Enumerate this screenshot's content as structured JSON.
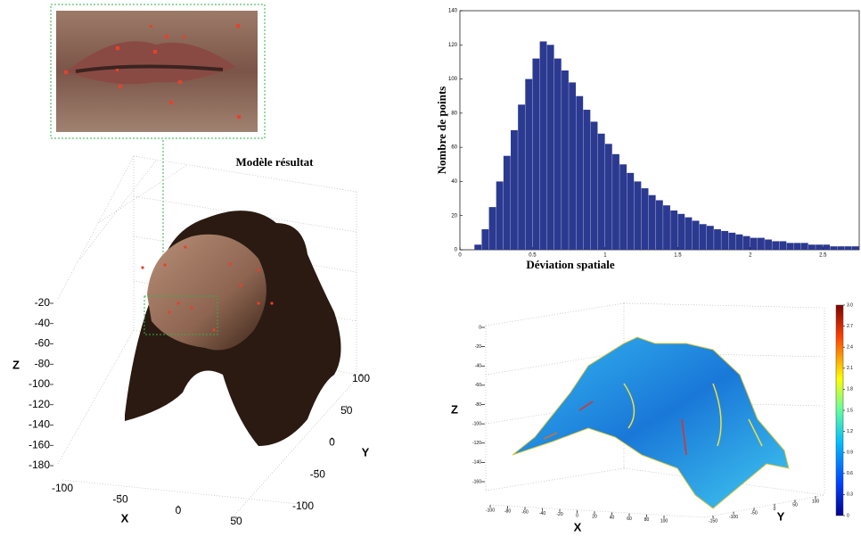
{
  "chart_data": [
    {
      "type": "surface3d",
      "title": "Modèle résultat",
      "xlabel": "X",
      "ylabel": "Y",
      "zlabel": "Z",
      "xlim": [
        -100,
        50
      ],
      "xticks": [
        -100,
        -50,
        0,
        50
      ],
      "ylim": [
        -100,
        100
      ],
      "yticks": [
        -100,
        -50,
        0,
        50,
        100
      ],
      "zlim": [
        -180,
        -20
      ],
      "zticks": [
        -180,
        -160,
        -140,
        -120,
        -100,
        -80,
        -60,
        -40,
        -20
      ]
    },
    {
      "type": "histogram",
      "xlabel": "Déviation spatiale",
      "ylabel": "Nombre de points",
      "color": "#2b3990",
      "bins": [
        0,
        0.05,
        0.1,
        0.15,
        0.2,
        0.25,
        0.3,
        0.35,
        0.4,
        0.45,
        0.5,
        0.55,
        0.6,
        0.65,
        0.7,
        0.75,
        0.8,
        0.85,
        0.9,
        0.95,
        1,
        1.05,
        1.1,
        1.15,
        1.2,
        1.25,
        1.3,
        1.35,
        1.4,
        1.45,
        1.5,
        1.55,
        1.6,
        1.65,
        1.7,
        1.75,
        1.8,
        1.85,
        1.9,
        1.95,
        2,
        2.05,
        2.1,
        2.15,
        2.2,
        2.25,
        2.3,
        2.35,
        2.4,
        2.45,
        2.5,
        2.55,
        2.6,
        2.65,
        2.7,
        2.75
      ],
      "values": [
        0,
        0,
        3,
        12,
        25,
        40,
        55,
        70,
        85,
        100,
        112,
        122,
        120,
        112,
        105,
        98,
        90,
        82,
        75,
        68,
        62,
        56,
        50,
        45,
        40,
        36,
        32,
        29,
        26,
        23,
        21,
        19,
        17,
        15,
        14,
        12,
        11,
        10,
        9,
        8,
        7,
        7,
        6,
        5,
        5,
        4,
        4,
        4,
        3,
        3,
        3,
        2,
        2,
        2,
        2
      ],
      "xlim": [
        0,
        2.75
      ],
      "xticks": [
        0,
        0.5,
        1,
        1.5,
        2,
        2.5
      ],
      "ylim": [
        0,
        140
      ],
      "yticks": [
        0,
        20,
        40,
        60,
        80,
        100,
        120,
        140
      ]
    },
    {
      "type": "surface3d",
      "xlabel": "X",
      "ylabel": "Y",
      "zlabel": "Z",
      "xlim": [
        -100,
        100
      ],
      "xticks": [
        -100,
        -80,
        -60,
        -40,
        -20,
        0,
        20,
        40,
        60,
        80,
        100
      ],
      "ylim": [
        -150,
        100
      ],
      "yticks": [
        -150,
        -100,
        -50,
        0,
        50,
        100
      ],
      "zlim": [
        -160,
        0
      ],
      "zticks": [
        -160,
        -140,
        -120,
        -100,
        -80,
        -60,
        -40,
        -20,
        0
      ],
      "colorbar_lim": [
        0,
        3
      ],
      "colorbar_ticks": [
        0,
        0.3,
        0.6,
        0.9,
        1.2,
        1.5,
        1.8,
        2.1,
        2.4,
        2.7,
        {
          "value": 3,
          "label": "3.0"
        }
      ]
    }
  ]
}
